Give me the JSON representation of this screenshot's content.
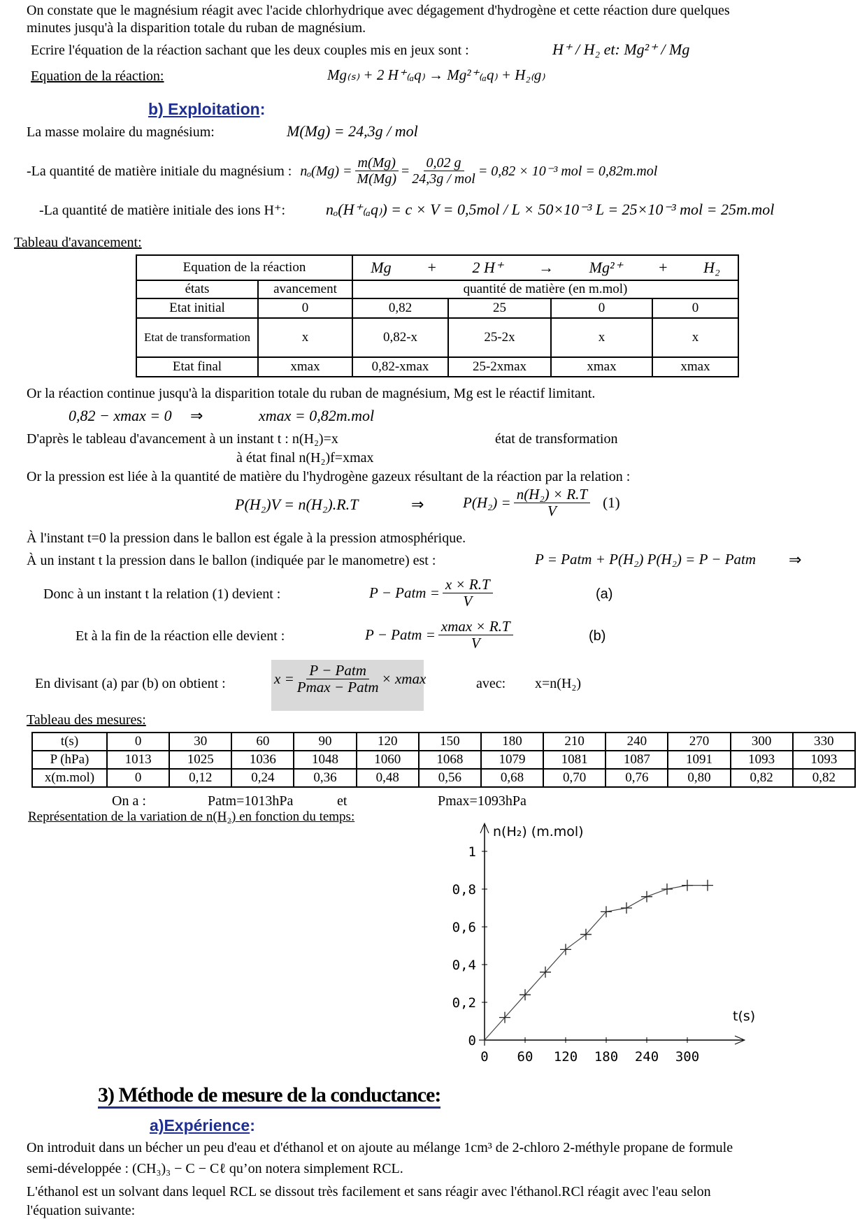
{
  "intro": {
    "line1": "On constate que le magnésium réagit avec l'acide chlorhydrique avec dégagement d'hydrogène et cette réaction dure quelques",
    "line2": "minutes jusqu'à la disparition totale du ruban de magnésium.",
    "ecrire": "Ecrire l'équation de la réaction sachant que les deux couples mis en jeux sont :",
    "couples": "H⁺ / H₂ et: Mg²⁺ / Mg",
    "eq_label": "Equation de la réaction:",
    "equation": "Mg₍ₛ₎ + 2 H⁺₍ₐq₎ → Mg²⁺₍ₐq₎ + H₂₍g₎"
  },
  "exploitation": {
    "title": "b) Exploitation",
    "colon": ":",
    "masse_label": "La masse molaire du magnésium:",
    "masse_formula": "M(Mg) = 24,3g / mol",
    "qte_mg_label": "-La quantité de matière initiale du magnésium :",
    "qte_mg_lhs": "nₒ(Mg) =",
    "qte_mg_num1": "m(Mg)",
    "qte_mg_den1": "M(Mg)",
    "qte_mg_num2": "0,02 g",
    "qte_mg_den2": "24,3g / mol",
    "qte_mg_rhs": "= 0,82 × 10⁻³ mol = 0,82m.mol",
    "qte_h_label": "-La quantité de matière initiale des ions H⁺:",
    "qte_h_formula": "nₒ(H⁺₍ₐq₎) = c × V = 0,5mol / L × 50×10⁻³ L = 25×10⁻³ mol = 25m.mol"
  },
  "avancement": {
    "title": "Tableau d'avancement:",
    "eq_header": "Equation de la réaction",
    "species": [
      "Mg",
      "+",
      "2 H⁺",
      "→",
      "Mg²⁺",
      "+",
      "H₂"
    ],
    "col_etats": "états",
    "col_avancement": "avancement",
    "col_quantite": "quantité de matière (en m.mol)",
    "rows": [
      [
        "Etat initial",
        "0",
        "0,82",
        "25",
        "0",
        "0"
      ],
      [
        "Etat de transformation",
        "x",
        "0,82-x",
        "25-2x",
        "x",
        "x"
      ],
      [
        "Etat final",
        "xmax",
        "0,82-xmax",
        "25-2xmax",
        "xmax",
        "xmax"
      ]
    ]
  },
  "analysis": {
    "limitant": "Or la réaction continue jusqu'à la disparition totale du ruban de magnésium,  Mg est le réactif limitant.",
    "xmax_eq": "0,82 − xmax = 0",
    "implies": "⇒",
    "xmax_val": "xmax = 0,82m.mol",
    "dapres": "D'après le tableau d'avancement à un instant  t :    n(H₂)=x",
    "etat_transfo": "état de transformation",
    "etat_final": "à   état final        n(H₂)f=xmax",
    "pression": "Or la pression est liée à la quantité de matière du l'hydrogène gazeux résultant de la réaction par la relation :",
    "pv": "P(H₂)V  = n(H₂).R.T",
    "ph2_lhs": "P(H₂) =",
    "ph2_num": "n(H₂) × R.T",
    "ph2_den": "V",
    "ph2_ref": "(1)",
    "t0": "À l'instant t=0 la pression dans le ballon est égale à la pression atmosphérique.",
    "instant": "À un instant t la pression dans le ballon (indiquée par le manometre)  est   :",
    "instant_formula": "P = Patm + P(H₂)   P(H₂) = P − Patm",
    "instant_implies": "⇒",
    "donc": "Donc à un instant t la relation (1) devient :",
    "a_lhs": "P − Patm =",
    "a_num": "x × R.T",
    "a_den": "V",
    "a_ref": "(a)",
    "fin": "Et à la fin de la réaction elle devient :",
    "b_lhs": "P − Patm =",
    "b_num": "xmax × R.T",
    "b_den": "V",
    "b_ref": "(b)",
    "divisant": "En divisant (a) par (b) on obtient :",
    "div_lhs": "x =",
    "div_num": "P − Patm",
    "div_den": "Pmax − Patm",
    "div_rhs": "× xmax",
    "avec": "avec:",
    "avec_val": "x=n(H₂)"
  },
  "mesures": {
    "title": "Tableau des mesures:",
    "rows": [
      [
        "t(s)",
        "0",
        "30",
        "60",
        "90",
        "120",
        "150",
        "180",
        "210",
        "240",
        "270",
        "300",
        "330"
      ],
      [
        "P (hPa)",
        "1013",
        "1025",
        "1036",
        "1048",
        "1060",
        "1068",
        "1079",
        "1081",
        "1087",
        "1091",
        "1093",
        "1093"
      ],
      [
        "x(m.mol)",
        "0",
        "0,12",
        "0,24",
        "0,36",
        "0,48",
        "0,56",
        "0,68",
        "0,70",
        "0,76",
        "0,80",
        "0,82",
        "0,82"
      ]
    ],
    "ona": "On a :",
    "patm": "Patm=1013hPa",
    "et": "et",
    "pmax": "Pmax=1093hPa",
    "representation": "Représentation de la variation de n(H₂) en fonction du temps:"
  },
  "chart_data": {
    "type": "line",
    "ylabel": "n(H₂) (m.mol)",
    "xlabel": "t(s)",
    "x_ticks": [
      "0",
      "60",
      "120",
      "180",
      "240",
      "300"
    ],
    "y_ticks": [
      "0",
      "0,2",
      "0,4",
      "0,6",
      "0,8",
      "1"
    ],
    "xlim": [
      0,
      330
    ],
    "ylim": [
      0,
      1
    ],
    "x": [
      0,
      30,
      60,
      90,
      120,
      150,
      180,
      210,
      240,
      270,
      300,
      330
    ],
    "y": [
      0,
      0.12,
      0.24,
      0.36,
      0.48,
      0.56,
      0.68,
      0.7,
      0.76,
      0.8,
      0.82,
      0.82
    ]
  },
  "section3": {
    "title": "3) Méthode de mesure de la conductance:",
    "sub": "a)Expérience",
    "sub_colon": ":",
    "p1": "On introduit dans un bécher un peu d'eau et d'éthanol et on ajoute au mélange 1cm³ de 2-chloro 2-méthyle propane de formule",
    "p2": "semi-développée : (CH₃)₃ − C − Cℓ   qu’on notera simplement RCL.",
    "p3": "L'éthanol est un solvant dans lequel RCL se dissout très facilement et sans réagir avec l'éthanol.RCl  réagit avec l'eau  selon",
    "p4": "l'équation suivante:"
  }
}
